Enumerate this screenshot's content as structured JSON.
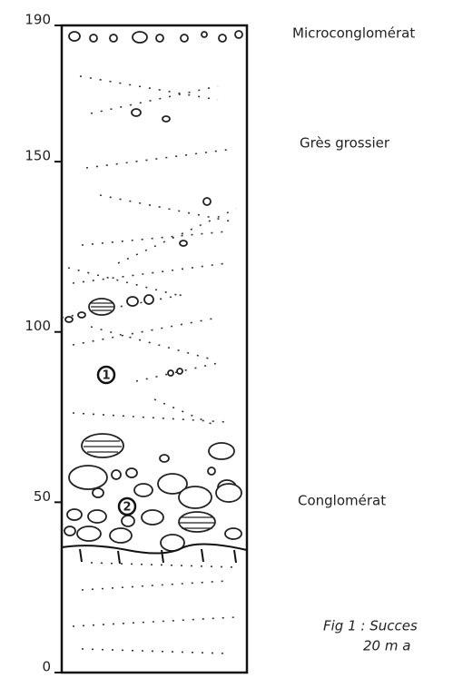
{
  "scale": {
    "ticks": [
      190,
      150,
      100,
      50,
      0
    ]
  },
  "layers": [
    {
      "label": "Microconglomérat"
    },
    {
      "label": "Grès grossier"
    },
    {
      "label": "Conglomérat"
    }
  ],
  "markers": [
    "1",
    "2"
  ],
  "caption": {
    "line1": "Fig 1 : Succes",
    "line2": "20 m a"
  }
}
